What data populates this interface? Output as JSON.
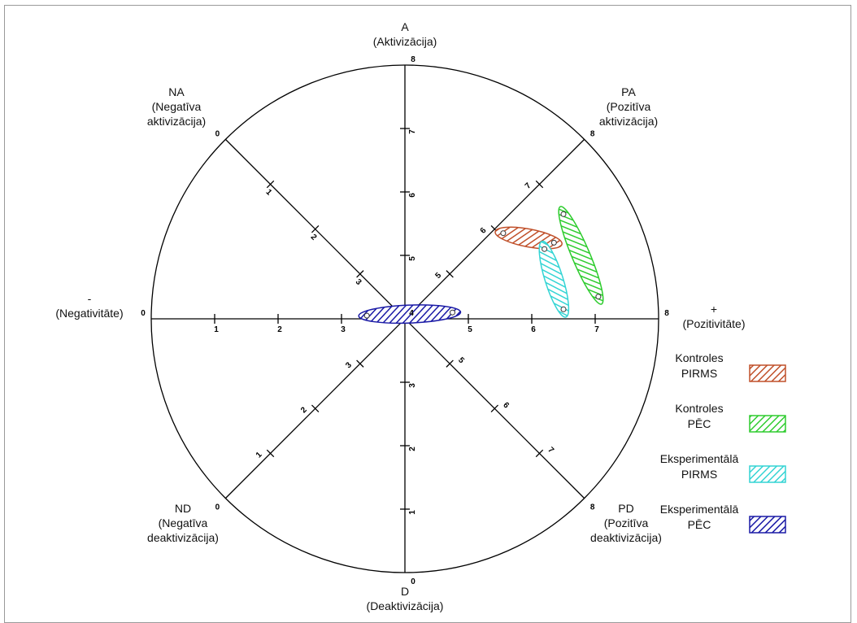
{
  "chart_data": {
    "type": "scatter",
    "subtype": "circumplex / emotion wheel",
    "axes": {
      "horizontal": {
        "range": [
          0,
          8
        ],
        "ticks": [
          "0",
          "1",
          "2",
          "3",
          "4",
          "5",
          "6",
          "7",
          "8"
        ],
        "left_label": [
          "-",
          "(Negativitāte)"
        ],
        "right_label": [
          "+",
          "(Pozitivitāte)"
        ]
      },
      "vertical": {
        "range": [
          0,
          8
        ],
        "ticks": [
          "0",
          "1",
          "2",
          "3",
          "4",
          "5",
          "6",
          "7",
          "8"
        ],
        "top_label": [
          "A",
          "(Aktivizācija)"
        ],
        "bottom_label": [
          "D",
          "(Deaktivizācija)"
        ]
      },
      "diag_NA_PD": {
        "range": [
          0,
          8
        ],
        "ticks": [
          "0",
          "1",
          "2",
          "3",
          "4",
          "5",
          "6",
          "7",
          "8"
        ],
        "na_label": [
          "NA",
          "(Negatīva",
          "aktivizācija)"
        ],
        "pd_label": [
          "PD",
          "(Pozitīva",
          "deaktivizācija)"
        ]
      },
      "diag_ND_PA": {
        "range": [
          0,
          8
        ],
        "ticks": [
          "0",
          "1",
          "2",
          "3",
          "4",
          "5",
          "6",
          "7",
          "8"
        ],
        "nd_label": [
          "ND",
          "(Negatīva",
          "deaktivizācija)"
        ],
        "pa_label": [
          "PA",
          "(Pozitīva",
          "aktivizācija)"
        ]
      }
    },
    "series": [
      {
        "name": [
          "Kontroles",
          "PIRMS"
        ],
        "color": "#c0502a",
        "points": [
          {
            "x": 5.55,
            "y": 5.35
          },
          {
            "x": 6.35,
            "y": 5.2
          }
        ]
      },
      {
        "name": [
          "Kontroles",
          "PĒC"
        ],
        "color": "#2ecc2e",
        "points": [
          {
            "x": 6.5,
            "y": 5.65
          },
          {
            "x": 7.05,
            "y": 4.35
          }
        ]
      },
      {
        "name": [
          "Eksperimentālā",
          "PIRMS"
        ],
        "color": "#33d4d4",
        "points": [
          {
            "x": 6.2,
            "y": 5.1
          },
          {
            "x": 6.5,
            "y": 4.15
          }
        ]
      },
      {
        "name": [
          "Eksperimentālā",
          "PĒC"
        ],
        "color": "#1a1aa6",
        "points": [
          {
            "x": 3.4,
            "y": 4.05
          },
          {
            "x": 4.75,
            "y": 4.1
          }
        ]
      }
    ],
    "legend_position": "right"
  }
}
